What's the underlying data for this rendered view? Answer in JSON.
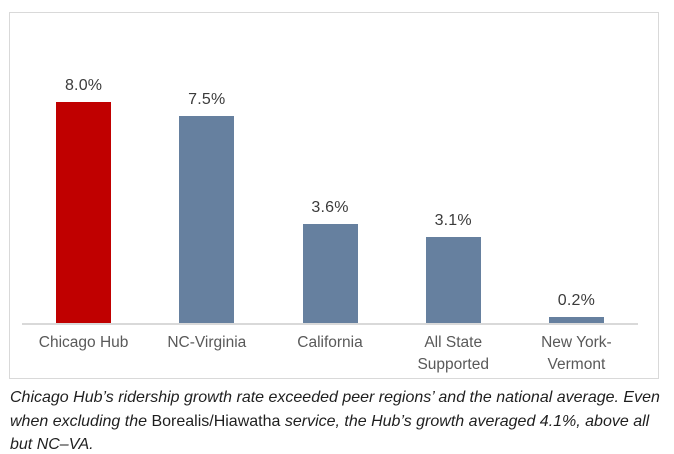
{
  "chart_data": {
    "type": "bar",
    "categories": [
      "Chicago Hub",
      "NC-Virginia",
      "California",
      "All State Supported",
      "New York-Vermont"
    ],
    "tick_labels": [
      "Chicago Hub",
      "NC-Virginia",
      "California",
      "All State\nSupported",
      "New York-\nVermont"
    ],
    "values": [
      8.0,
      7.5,
      3.6,
      3.1,
      0.2
    ],
    "value_labels": [
      "8.0%",
      "7.5%",
      "3.6%",
      "3.1%",
      "0.2%"
    ],
    "bar_colors": [
      "#c00000",
      "#66809f",
      "#66809f",
      "#66809f",
      "#66809f"
    ],
    "title": "",
    "xlabel": "",
    "ylabel": "",
    "ylim": [
      0,
      8.7
    ],
    "grid": false,
    "legend": false,
    "accent_color": "#c00000",
    "peer_color": "#66809f",
    "axis_line_color": "#d9d9d9",
    "frame_border_color": "#d9d9d9"
  },
  "caption": {
    "lines": [
      {
        "segments": [
          {
            "text": "Chicago Hub’s ridership growth rate exceeded peer regions’ and the national average. Even",
            "italic": true
          }
        ]
      },
      {
        "segments": [
          {
            "text": "when excluding the ",
            "italic": true
          },
          {
            "text": "Borealis/Hiawatha",
            "italic": false
          },
          {
            "text": " service, the Hub’s growth averaged 4.1%, above all",
            "italic": true
          }
        ]
      },
      {
        "segments": [
          {
            "text": "but NC–VA.",
            "italic": true
          }
        ]
      }
    ]
  }
}
